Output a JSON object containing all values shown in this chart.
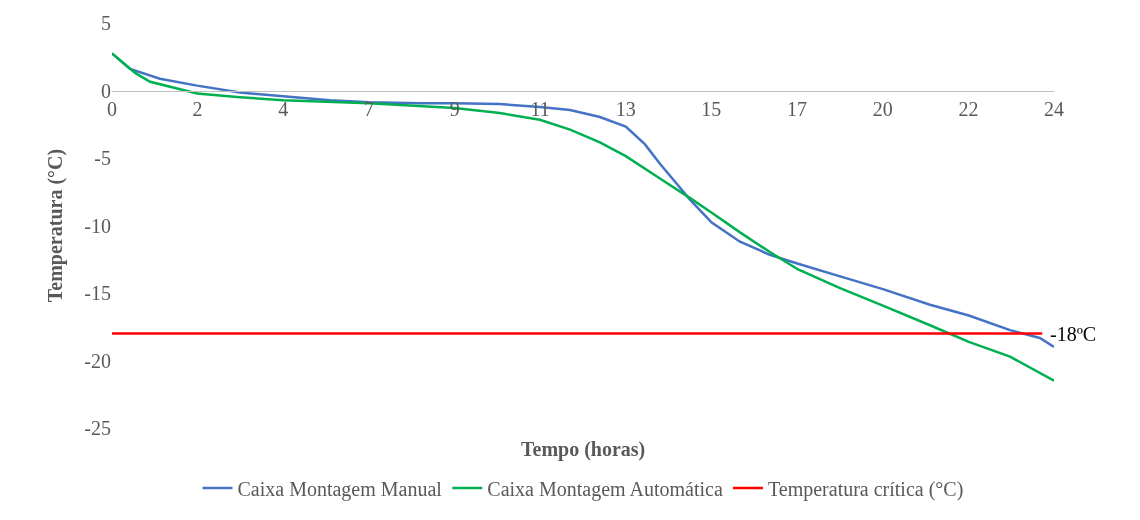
{
  "chart_data": {
    "type": "line",
    "xlabel": "Tempo (horas)",
    "ylabel": "Temperatura (°C)",
    "xlim": [
      0,
      24
    ],
    "xticks": [
      0,
      {
        "value": 2.18,
        "label": "2"
      },
      {
        "value": 4.36,
        "label": "4"
      },
      {
        "value": 6.55,
        "label": "7"
      },
      {
        "value": 8.73,
        "label": "9"
      },
      {
        "value": 10.91,
        "label": "11"
      },
      {
        "value": 13.09,
        "label": "13"
      },
      {
        "value": 15.27,
        "label": "15"
      },
      {
        "value": 17.45,
        "label": "17"
      },
      {
        "value": 19.64,
        "label": "20"
      },
      {
        "value": 21.82,
        "label": "22"
      },
      24
    ],
    "ylim": [
      -25,
      5
    ],
    "yticks": [
      -25,
      -20,
      -15,
      -10,
      -5,
      0,
      5
    ],
    "legend": "bottom",
    "series": [
      {
        "name": "Caixa Montagem Manual",
        "color": "#4472c4",
        "x": [
          0,
          0.46,
          1.22,
          2.17,
          3.26,
          4.36,
          5.55,
          6.55,
          7.85,
          8.73,
          9.88,
          10.9,
          11.67,
          12.43,
          13.09,
          13.58,
          13.96,
          14.34,
          14.73,
          15.28,
          16.0,
          16.76,
          17.48,
          18.55,
          19.64,
          20.84,
          21.83,
          22.88,
          23.64,
          24
        ],
        "values": [
          2.75,
          1.6,
          0.87,
          0.36,
          -0.15,
          -0.43,
          -0.72,
          -0.87,
          -0.94,
          -0.94,
          -1.0,
          -1.23,
          -1.45,
          -1.96,
          -2.68,
          -3.99,
          -5.43,
          -6.74,
          -8.1,
          -9.78,
          -11.2,
          -12.17,
          -12.83,
          -13.77,
          -14.71,
          -15.87,
          -16.67,
          -17.75,
          -18.33,
          -18.99
        ]
      },
      {
        "name": "Caixa Montagem Automática",
        "color": "#00b050",
        "x": [
          0,
          0.59,
          0.97,
          2.17,
          3.26,
          4.36,
          6.55,
          8.73,
          9.88,
          10.9,
          11.67,
          12.43,
          13.09,
          13.96,
          14.73,
          15.28,
          16.0,
          16.76,
          17.48,
          18.55,
          19.64,
          20.84,
          21.83,
          22.88,
          24
        ],
        "values": [
          2.75,
          1.3,
          0.65,
          -0.22,
          -0.5,
          -0.72,
          -0.94,
          -1.3,
          -1.67,
          -2.17,
          -2.9,
          -3.84,
          -4.86,
          -6.52,
          -7.97,
          -9.06,
          -10.51,
          -11.96,
          -13.26,
          -14.64,
          -15.94,
          -17.39,
          -18.62,
          -19.71,
          -21.5
        ]
      },
      {
        "name": "Temperatura crítica (°C)",
        "color": "#ff0000",
        "x": [
          0,
          23.7
        ],
        "values": [
          -18,
          -18
        ]
      }
    ],
    "annotations": [
      {
        "text": "-18ºC",
        "x": 23.7,
        "y": -18
      }
    ]
  }
}
